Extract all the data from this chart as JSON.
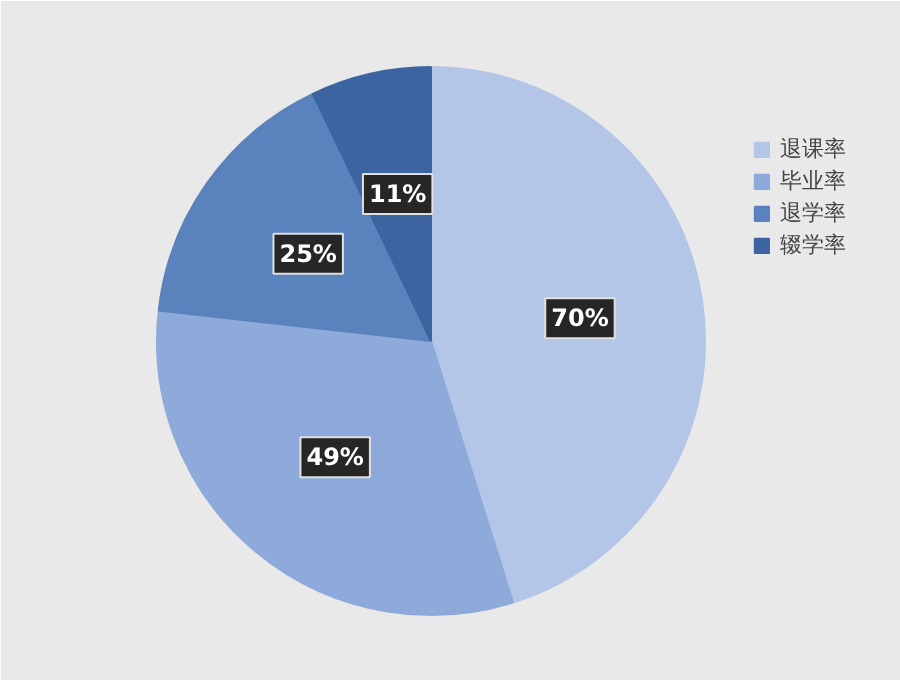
{
  "chart_data": {
    "type": "pie",
    "categories": [
      "退课率",
      "毕业率",
      "退学率",
      "辍学率"
    ],
    "values": [
      70,
      49,
      25,
      11
    ],
    "value_labels": [
      "70%",
      "49%",
      "25%",
      "11%"
    ],
    "colors": [
      "#b4c6e7",
      "#8eaadb",
      "#5a82bd",
      "#3c64a0"
    ],
    "legend": "right"
  }
}
